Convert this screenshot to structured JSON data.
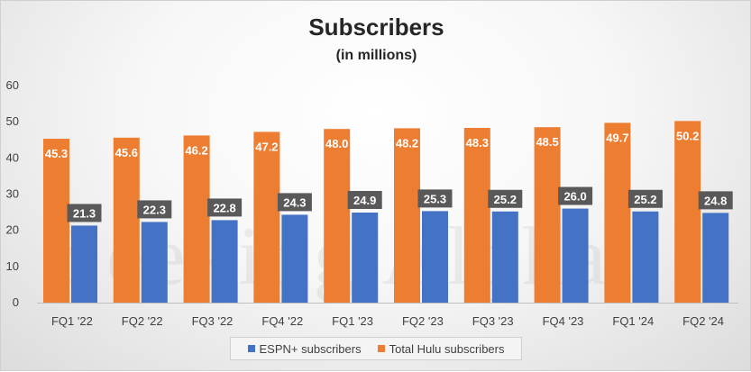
{
  "chart_data": {
    "type": "bar",
    "title": "Subscribers",
    "subtitle": "(in millions)",
    "categories": [
      "FQ1 '22",
      "FQ2 '22",
      "FQ3 '22",
      "FQ4 '22",
      "FQ1 '23",
      "FQ2 '23",
      "FQ3 '23",
      "FQ4 '23",
      "FQ1 '24",
      "FQ2 '24"
    ],
    "series": [
      {
        "name": "ESPN+ subscribers",
        "color": "#4472c4",
        "values": [
          21.3,
          22.3,
          22.8,
          24.3,
          24.9,
          25.3,
          25.2,
          26.0,
          25.2,
          24.8
        ]
      },
      {
        "name": "Total Hulu subscribers",
        "color": "#ed7d31",
        "values": [
          45.3,
          45.6,
          46.2,
          47.2,
          48.0,
          48.2,
          48.3,
          48.5,
          49.7,
          50.2
        ]
      }
    ],
    "ylim": [
      0,
      60
    ],
    "yticks": [
      0,
      10,
      20,
      30,
      40,
      50,
      60
    ],
    "grid": false,
    "legend_position": "bottom",
    "watermark": "Seeking Alpha"
  }
}
